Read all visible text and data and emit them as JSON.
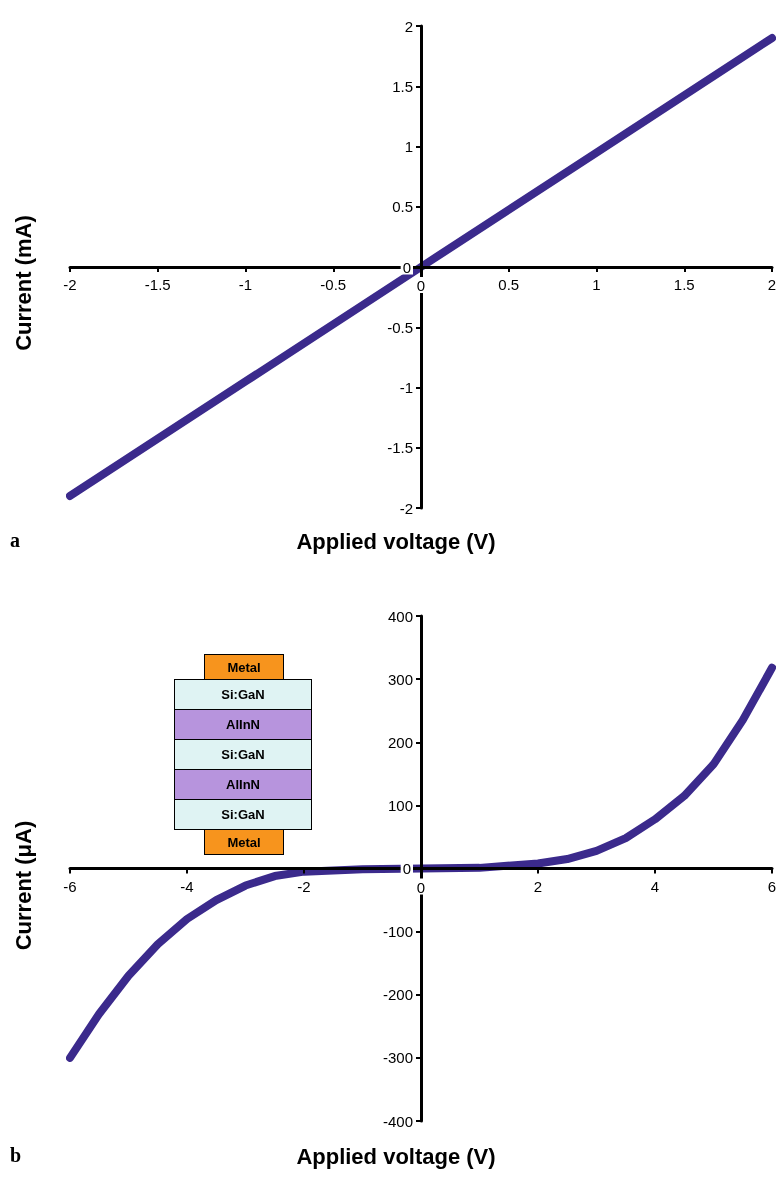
{
  "chart_data": [
    {
      "type": "line",
      "xlabel": "Applied voltage (V)",
      "ylabel": "Current (mA)",
      "x": [
        -2,
        -1,
        0,
        1,
        2
      ],
      "series": [
        {
          "color": "#3b2a8c",
          "values": [
            -1.9,
            -0.95,
            0,
            0.95,
            1.9
          ]
        }
      ],
      "xlim": [
        -2,
        2
      ],
      "ylim": [
        -2,
        2
      ],
      "xticks": [
        -2,
        -1.5,
        -1,
        -0.5,
        0,
        0.5,
        1,
        1.5,
        2
      ],
      "yticks": [
        -2,
        -1.5,
        -1,
        -0.5,
        0,
        0.5,
        1,
        1.5,
        2
      ],
      "grid": false,
      "line_style": "solid",
      "annotations": [
        "a"
      ]
    },
    {
      "type": "line",
      "xlabel": "Applied voltage (V)",
      "ylabel": "Current (μA)",
      "x": [
        -6,
        -5.5,
        -5,
        -4.5,
        -4,
        -3.5,
        -3,
        -2.5,
        -2,
        -1,
        0,
        1,
        2,
        2.5,
        3,
        3.5,
        4,
        4.5,
        5,
        5.5,
        6
      ],
      "series": [
        {
          "color": "#3b2a8c",
          "values": [
            -300,
            -230,
            -170,
            -120,
            -80,
            -50,
            -27,
            -12,
            -5,
            -1,
            0,
            1,
            8,
            15,
            28,
            48,
            78,
            115,
            165,
            235,
            318
          ]
        }
      ],
      "xlim": [
        -6,
        6
      ],
      "ylim": [
        -400,
        400
      ],
      "xticks": [
        -6,
        -4,
        -2,
        0,
        2,
        4,
        6
      ],
      "yticks": [
        -400,
        -300,
        -200,
        -100,
        0,
        100,
        200,
        300,
        400
      ],
      "grid": false,
      "line_style": "solid",
      "annotations": [
        "b",
        "Metal",
        "Si:GaN",
        "AlInN",
        "Si:GaN",
        "AlInN",
        "Si:GaN",
        "Metal"
      ]
    }
  ]
}
